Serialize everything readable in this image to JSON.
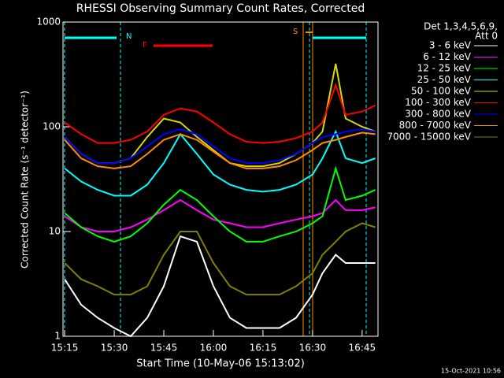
{
  "chart_data": {
    "type": "line",
    "title": "RHESSI Observing Summary Count Rates, Corrected",
    "x_label": "Start Time (10-May-06 15:13:02)",
    "y_label": "Corrected Count Rate (s⁻¹ detector⁻¹)",
    "ylog": true,
    "ylim": [
      1,
      1000
    ],
    "yticks": [
      1,
      10,
      100,
      1000
    ],
    "xlim": [
      914.5,
      1009.8
    ],
    "xticks": [
      {
        "value": 915,
        "label": "15:15"
      },
      {
        "value": 930,
        "label": "15:30"
      },
      {
        "value": 945,
        "label": "15:45"
      },
      {
        "value": 960,
        "label": "16:00"
      },
      {
        "value": 975,
        "label": "16:15"
      },
      {
        "value": 990,
        "label": "16:30"
      },
      {
        "value": 1005,
        "label": "16:45"
      }
    ],
    "legend_title": [
      "Det 1,3,4,5,6,9,",
      "Att 0"
    ],
    "legend_position": "right",
    "annotations": [
      "N",
      "F",
      "S"
    ],
    "footer": "15-Oct-2021 10:56",
    "x": [
      915,
      920,
      925,
      930,
      935,
      940,
      945,
      950,
      955,
      960,
      965,
      970,
      975,
      980,
      985,
      990,
      993,
      997,
      1000,
      1005,
      1009
    ],
    "series": [
      {
        "name": "3 - 6 keV",
        "color": "#ffffff",
        "values": [
          3.5,
          2,
          1.5,
          1.2,
          1,
          1.5,
          3,
          9,
          8,
          3,
          1.5,
          1.2,
          1.2,
          1.2,
          1.5,
          2.5,
          4,
          6,
          5,
          5,
          5
        ]
      },
      {
        "name": "6 - 12 keV",
        "color": "#ff00ff",
        "values": [
          14,
          11,
          10,
          10,
          11,
          13,
          16,
          20,
          16,
          13,
          12,
          11,
          11,
          12,
          13,
          14,
          15,
          20,
          16,
          16,
          17
        ]
      },
      {
        "name": "12 - 25 keV",
        "color": "#00ff00",
        "values": [
          15,
          11,
          9,
          8,
          9,
          12,
          18,
          25,
          20,
          14,
          10,
          8,
          8,
          9,
          10,
          12,
          14,
          40,
          20,
          22,
          25
        ]
      },
      {
        "name": "25 - 50 keV",
        "color": "#00ffff",
        "values": [
          40,
          30,
          25,
          22,
          22,
          28,
          45,
          85,
          55,
          35,
          28,
          25,
          24,
          25,
          28,
          35,
          50,
          90,
          50,
          45,
          50
        ]
      },
      {
        "name": "50 - 100 keV",
        "color": "#d8d800",
        "values": [
          80,
          55,
          45,
          45,
          50,
          80,
          120,
          110,
          80,
          60,
          45,
          42,
          42,
          45,
          55,
          70,
          90,
          400,
          120,
          100,
          90
        ]
      },
      {
        "name": "100 - 300 keV",
        "color": "#ff0000",
        "values": [
          110,
          85,
          70,
          70,
          75,
          90,
          130,
          150,
          140,
          110,
          85,
          72,
          70,
          72,
          78,
          90,
          110,
          250,
          130,
          140,
          160
        ]
      },
      {
        "name": "300 - 800 keV",
        "color": "#0000ff",
        "values": [
          80,
          55,
          45,
          45,
          50,
          65,
          85,
          95,
          85,
          65,
          50,
          45,
          45,
          48,
          55,
          70,
          80,
          85,
          90,
          95,
          90
        ]
      },
      {
        "name": "800 - 7000 keV",
        "color": "#ff8c00",
        "values": [
          75,
          50,
          42,
          40,
          42,
          55,
          75,
          85,
          75,
          58,
          45,
          40,
          40,
          42,
          48,
          60,
          70,
          75,
          80,
          88,
          85
        ]
      },
      {
        "name": "7000 - 15000 keV",
        "color": "#808000",
        "values": [
          5,
          3.5,
          3,
          2.5,
          2.5,
          3,
          6,
          10,
          10,
          5,
          3,
          2.5,
          2.5,
          2.5,
          3,
          4,
          6,
          8,
          10,
          12,
          11
        ]
      }
    ]
  }
}
